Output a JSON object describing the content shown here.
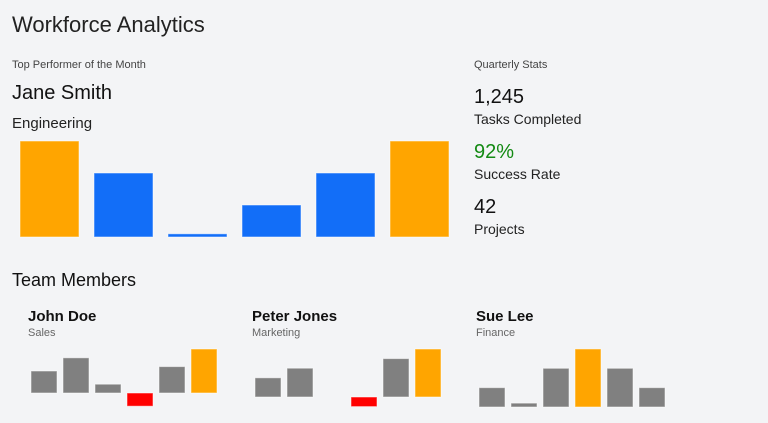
{
  "header": {
    "title": "Workforce Analytics"
  },
  "top_performer": {
    "label": "Top Performer of the Month",
    "name": "Jane Smith",
    "department": "Engineering"
  },
  "quarterly": {
    "label": "Quarterly Stats",
    "stats": [
      {
        "value": "1,245",
        "label": "Tasks Completed",
        "color": "#111111"
      },
      {
        "value": "92%",
        "label": "Success Rate",
        "color": "#138a13"
      },
      {
        "value": "42",
        "label": "Projects",
        "color": "#111111"
      }
    ]
  },
  "team": {
    "title": "Team Members",
    "members": [
      {
        "name": "John Doe",
        "department": "Sales",
        "values": [
          5,
          8,
          2,
          -3,
          6,
          10
        ]
      },
      {
        "name": "Peter Jones",
        "department": "Marketing",
        "values": [
          4,
          6,
          0,
          -2,
          8,
          10
        ]
      },
      {
        "name": "Sue Lee",
        "department": "Finance",
        "values": [
          5,
          1,
          10,
          15,
          10,
          5
        ]
      }
    ]
  },
  "colors": {
    "highlight": "#ffa500",
    "primary": "#126ef8",
    "neutral": "#808080",
    "negative": "#ff0000"
  },
  "chart_data": [
    {
      "type": "bar",
      "values": [
        30,
        20,
        1,
        10,
        20,
        30
      ]
    },
    {
      "type": "bar",
      "values": [
        5,
        8,
        2,
        -3,
        6,
        10
      ]
    },
    {
      "type": "bar",
      "values": [
        4,
        6,
        0,
        -2,
        8,
        10
      ]
    },
    {
      "type": "bar",
      "values": [
        5,
        1,
        10,
        15,
        10,
        5
      ]
    }
  ]
}
